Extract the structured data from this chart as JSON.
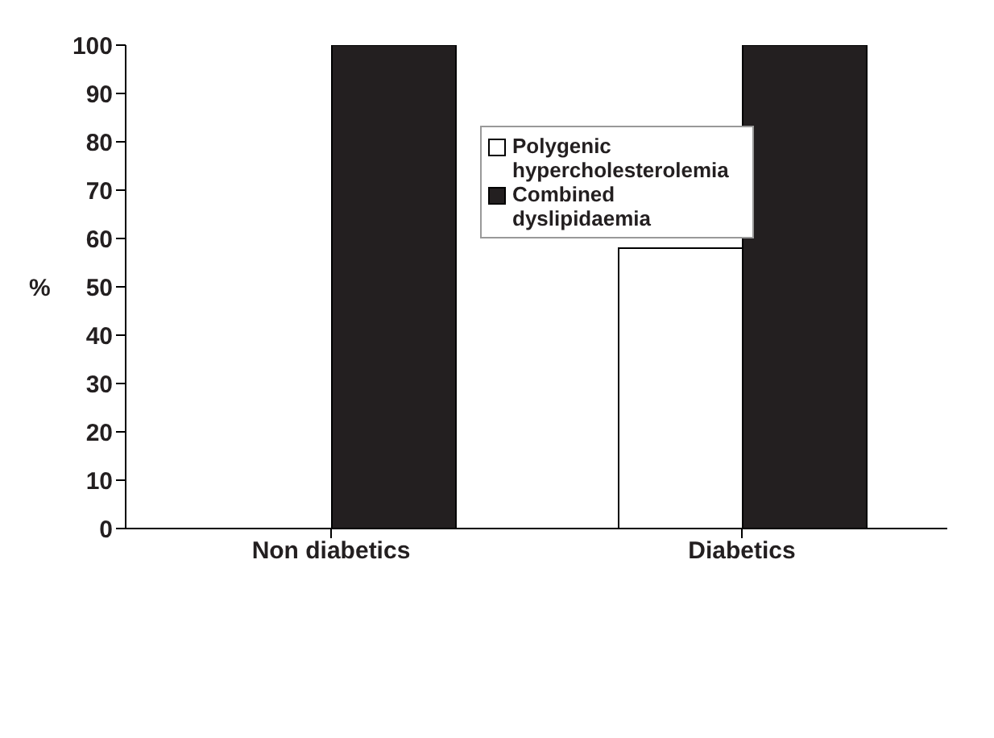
{
  "chart_data": {
    "type": "bar",
    "ylabel": "%",
    "categories": [
      "Non diabetics",
      "Diabetics"
    ],
    "series": [
      {
        "name": "Polygenic hypercholesterolemia",
        "color": "#ffffff",
        "values": [
          0,
          58
        ]
      },
      {
        "name": "Combined dyslipidaemia",
        "color": "#231f20",
        "values": [
          100,
          100
        ]
      }
    ],
    "ylim": [
      0,
      100
    ],
    "yticks": [
      0,
      10,
      20,
      30,
      40,
      50,
      60,
      70,
      80,
      90,
      100
    ],
    "grid": false,
    "legend": "top"
  }
}
